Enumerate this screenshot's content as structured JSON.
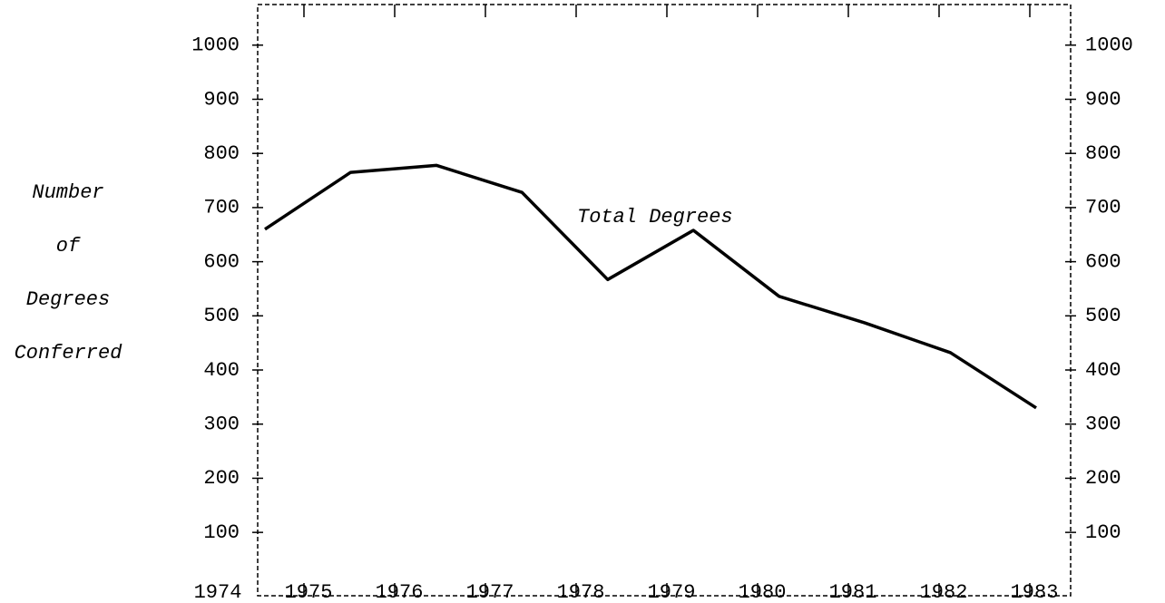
{
  "chart_data": {
    "type": "line",
    "ylabel": [
      "Number",
      "of",
      "Degrees",
      "Conferred"
    ],
    "annotation": "Total Degrees",
    "categories": [
      "1974",
      "1975",
      "1976",
      "1977",
      "1978",
      "1979",
      "1980",
      "1981",
      "1982",
      "1983"
    ],
    "series": [
      {
        "name": "Total Degrees",
        "color": "#000000",
        "values": [
          660,
          765,
          778,
          728,
          567,
          658,
          536,
          487,
          432,
          330
        ]
      }
    ],
    "ylim": [
      -17,
      1075
    ],
    "yticks": [
      100,
      200,
      300,
      400,
      500,
      600,
      700,
      800,
      900,
      1000
    ],
    "y2lim": [
      -17,
      1075
    ],
    "y2ticks": [
      100,
      200,
      300,
      400,
      500,
      600,
      700,
      800,
      900,
      1000
    ]
  }
}
